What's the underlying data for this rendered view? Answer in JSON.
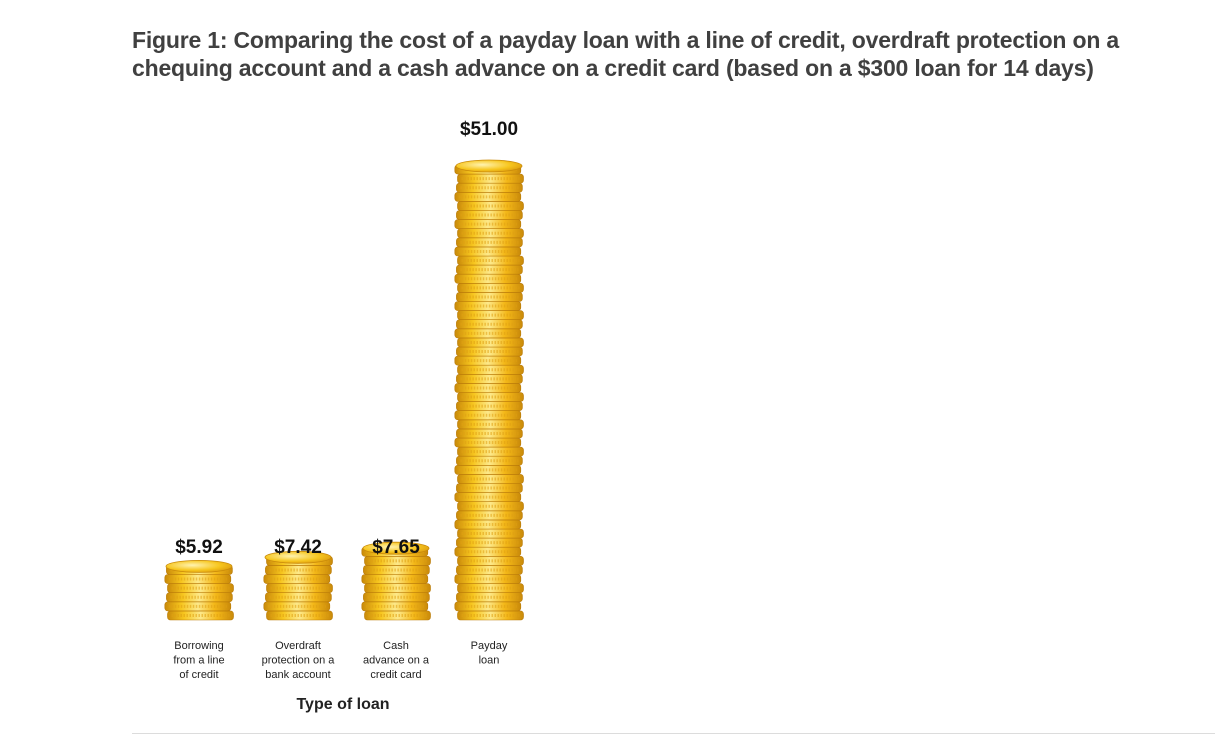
{
  "figure": {
    "title": "Figure 1: Comparing the cost of a payday loan with a line of credit, overdraft protection on a chequing account and a cash advance on a credit card (based on a $300 loan for 14 days)"
  },
  "chart_data": {
    "type": "bar",
    "title": "Figure 1: Comparing the cost of a payday loan with a line of credit, overdraft protection on a chequing account and a cash advance on a credit card (based on a $300 loan for 14 days)",
    "xlabel": "Type of loan",
    "ylabel": "",
    "categories": [
      [
        "Borrowing",
        "from a line",
        "of credit"
      ],
      [
        "Overdraft",
        "protection on a",
        "bank account"
      ],
      [
        "Cash",
        "advance on a",
        "credit card"
      ],
      [
        "Payday",
        "loan"
      ]
    ],
    "values": [
      5.92,
      7.42,
      7.65,
      51.0
    ],
    "value_labels": [
      "$5.92",
      "$7.42",
      "$7.65",
      "$51.00"
    ],
    "bar_style": "stacked gold coins",
    "grid": false,
    "legend": "none",
    "colors": {
      "coin_gold": "#f7c61e",
      "coin_light": "#fde98a",
      "coin_dark": "#c98a0a",
      "coin_edge": "#e3a215",
      "title_text": "#404040"
    }
  }
}
